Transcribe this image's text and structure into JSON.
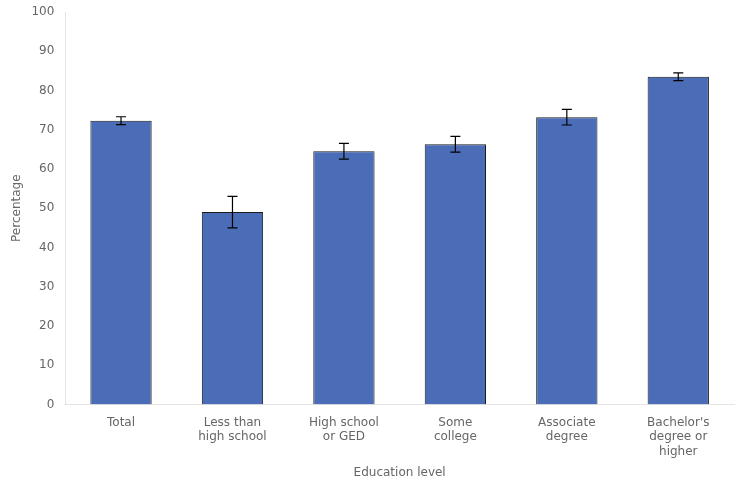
{
  "chart_data": {
    "type": "bar",
    "categories": [
      "Total",
      "Less than\nhigh school",
      "High school\nor GED",
      "Some\ncollege",
      "Associate\ndegree",
      "Bachelor's\ndegree or\nhigher"
    ],
    "values": [
      72.3,
      49.0,
      64.5,
      66.3,
      73.2,
      83.5
    ],
    "errors": [
      1.0,
      4.0,
      2.0,
      2.0,
      2.0,
      1.0
    ],
    "color": "#4B6CB7",
    "xlabel": "Education level",
    "ylabel": "Percentage",
    "ylim": [
      0,
      100
    ],
    "yticks": [
      0,
      10,
      20,
      30,
      40,
      50,
      60,
      70,
      80,
      90,
      100
    ],
    "grid": false
  }
}
